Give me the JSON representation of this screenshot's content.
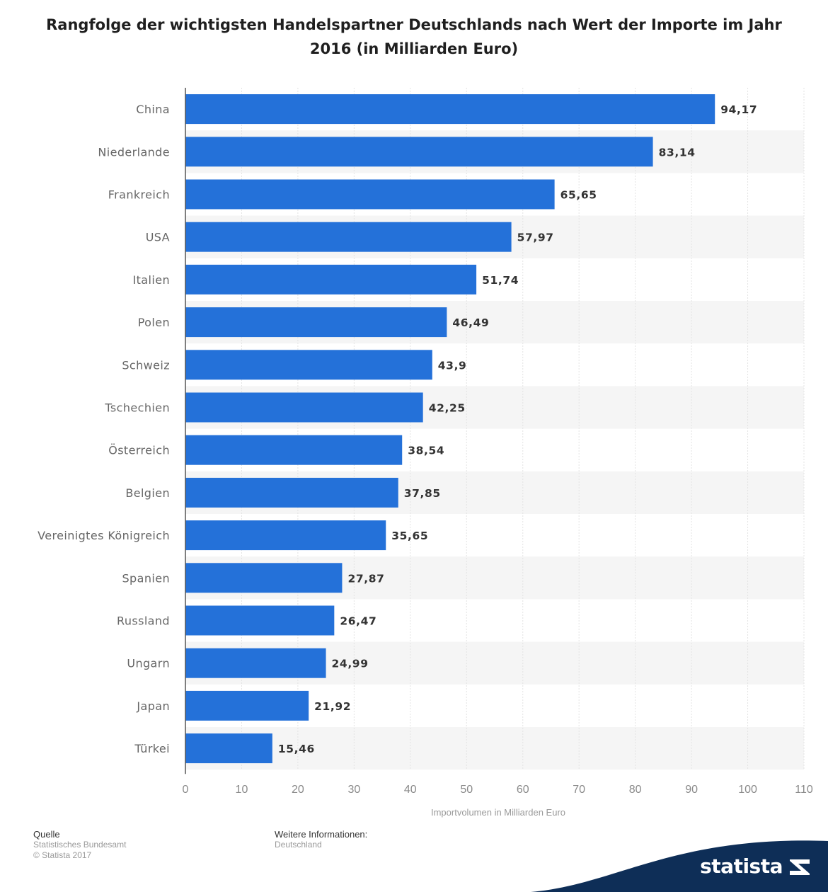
{
  "chart_data": {
    "type": "bar",
    "orientation": "horizontal",
    "title": "Rangfolge der wichtigsten Handelspartner Deutschlands nach Wert der Importe im Jahr 2016 (in Milliarden Euro)",
    "xlabel": "Importvolumen in Milliarden Euro",
    "ylabel": "",
    "categories": [
      "China",
      "Niederlande",
      "Frankreich",
      "USA",
      "Italien",
      "Polen",
      "Schweiz",
      "Tschechien",
      "Österreich",
      "Belgien",
      "Vereinigtes Königreich",
      "Spanien",
      "Russland",
      "Ungarn",
      "Japan",
      "Türkei"
    ],
    "values": [
      94.17,
      83.14,
      65.65,
      57.97,
      51.74,
      46.49,
      43.9,
      42.25,
      38.54,
      37.85,
      35.65,
      27.87,
      26.47,
      24.99,
      21.92,
      15.46
    ],
    "value_labels": [
      "94,17",
      "83,14",
      "65,65",
      "57,97",
      "51,74",
      "46,49",
      "43,9",
      "42,25",
      "38,54",
      "37,85",
      "35,65",
      "27,87",
      "26,47",
      "24,99",
      "21,92",
      "15,46"
    ],
    "xlim": [
      0,
      110
    ],
    "xticks": [
      0,
      10,
      20,
      30,
      40,
      50,
      60,
      70,
      80,
      90,
      100,
      110
    ],
    "grid": true,
    "legend": "none",
    "bar_color": "#2471d9",
    "row_shading_color": "#f5f5f5"
  },
  "footer": {
    "source_heading": "Quelle",
    "source_lines": [
      "Statistisches Bundesamt",
      "© Statista 2017"
    ],
    "info_heading": "Weitere Informationen:",
    "info_lines": [
      "Deutschland"
    ]
  },
  "brand": {
    "name": "statista",
    "icon": "statista-logo-icon",
    "color": "#0e2e57"
  }
}
